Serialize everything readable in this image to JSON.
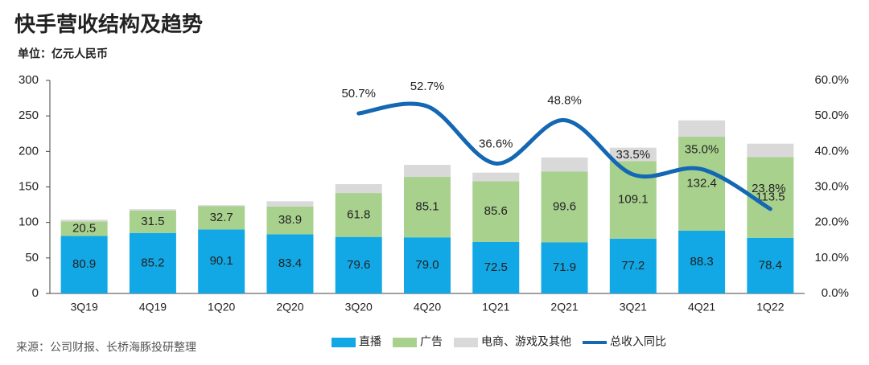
{
  "chart_data": {
    "type": "stacked-bar-line",
    "title": "快手营收结构及趋势",
    "subtitle": "单位：亿元人民币",
    "source": "来源：公司财报、长桥海豚投研整理",
    "categories": [
      "3Q19",
      "4Q19",
      "1Q20",
      "2Q20",
      "3Q20",
      "4Q20",
      "1Q21",
      "2Q21",
      "3Q21",
      "4Q21",
      "1Q22"
    ],
    "series": [
      {
        "name": "直播",
        "color": "#12a8e6",
        "values": [
          80.9,
          85.2,
          90.1,
          83.4,
          79.6,
          79.0,
          72.5,
          71.9,
          77.2,
          88.3,
          78.4
        ],
        "value_labels": [
          "80.9",
          "85.2",
          "90.1",
          "83.4",
          "79.6",
          "79.0",
          "72.5",
          "71.9",
          "77.2",
          "88.3",
          "78.4"
        ]
      },
      {
        "name": "广告",
        "color": "#a9d18e",
        "values": [
          20.5,
          31.5,
          32.7,
          38.9,
          61.8,
          85.1,
          85.6,
          99.6,
          109.1,
          132.4,
          113.5
        ],
        "value_labels": [
          "20.5",
          "31.5",
          "32.7",
          "38.9",
          "61.8",
          "85.1",
          "85.6",
          "99.6",
          "109.1",
          "132.4",
          "113.5"
        ]
      },
      {
        "name": "电商、游戏及其他",
        "color": "#d9d9d9",
        "values": [
          2.5,
          2,
          1.5,
          7.5,
          12.5,
          17,
          12,
          20,
          19,
          23,
          19
        ]
      },
      {
        "name": "总收入同比",
        "color": "#1467b3",
        "axis": "y2",
        "values": [
          null,
          null,
          null,
          null,
          50.7,
          52.7,
          36.6,
          48.8,
          33.5,
          35.0,
          23.8
        ],
        "value_labels": [
          null,
          null,
          null,
          null,
          "50.7%",
          "52.7%",
          "36.6%",
          "48.8%",
          "33.5%",
          "35.0%",
          "23.8%"
        ]
      }
    ],
    "ylim": [
      0,
      300
    ],
    "yticks": [
      0,
      50,
      100,
      150,
      200,
      250,
      300
    ],
    "y2lim": [
      0,
      60
    ],
    "y2ticks": [
      {
        "value": 0,
        "label": "0.0%"
      },
      {
        "value": 10,
        "label": "10.0%"
      },
      {
        "value": 20,
        "label": "20.0%"
      },
      {
        "value": 30,
        "label": "30.0%"
      },
      {
        "value": 40,
        "label": "40.0%"
      },
      {
        "value": 50,
        "label": "50.0%"
      },
      {
        "value": 60,
        "label": "60.0%"
      }
    ],
    "legend": "bottom"
  }
}
